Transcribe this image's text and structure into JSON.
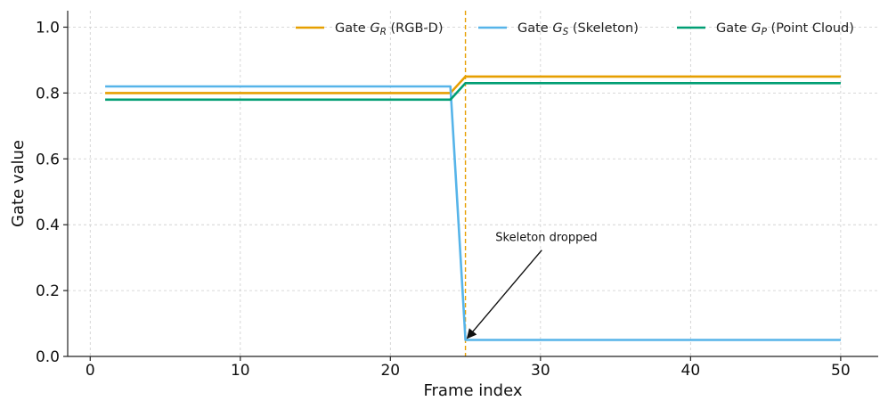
{
  "chart_data": {
    "type": "line",
    "title": "",
    "xlabel": "Frame index",
    "ylabel": "Gate value",
    "xlim": [
      -1.5,
      52.5
    ],
    "ylim": [
      0.0,
      1.05
    ],
    "xticks": [
      0,
      10,
      20,
      30,
      40,
      50
    ],
    "yticks": [
      0.0,
      0.2,
      0.4,
      0.6,
      0.8,
      1.0
    ],
    "xtick_labels": [
      "0",
      "10",
      "20",
      "30",
      "40",
      "50"
    ],
    "ytick_labels": [
      "0.0",
      "0.2",
      "0.4",
      "0.6",
      "0.8",
      "1.0"
    ],
    "grid": true,
    "legend_position": "top-right",
    "series": [
      {
        "key": "rgbd",
        "label_prefix": "Gate ",
        "label_symbol": "G",
        "label_sub": "R",
        "label_suffix": " (RGB-D)",
        "color": "#E69F00",
        "points": [
          [
            1,
            0.8
          ],
          [
            24,
            0.8
          ],
          [
            25,
            0.85
          ],
          [
            50,
            0.85
          ]
        ]
      },
      {
        "key": "skeleton",
        "label_prefix": "Gate ",
        "label_symbol": "G",
        "label_sub": "S",
        "label_suffix": " (Skeleton)",
        "color": "#56B4E9",
        "points": [
          [
            1,
            0.82
          ],
          [
            24,
            0.82
          ],
          [
            25,
            0.05
          ],
          [
            50,
            0.05
          ]
        ]
      },
      {
        "key": "pointcloud",
        "label_prefix": "Gate ",
        "label_symbol": "G",
        "label_sub": "P",
        "label_suffix": " (Point Cloud)",
        "color": "#009E73",
        "points": [
          [
            1,
            0.78
          ],
          [
            24,
            0.78
          ],
          [
            25,
            0.83
          ],
          [
            50,
            0.83
          ]
        ]
      }
    ],
    "vline": {
      "x": 25,
      "color": "#E69F00",
      "style": "dashed"
    },
    "annotation": {
      "text": "Skeleton dropped",
      "text_x": 27,
      "text_y": 0.35,
      "arrow_to_x": 25,
      "arrow_to_y": 0.05
    }
  }
}
